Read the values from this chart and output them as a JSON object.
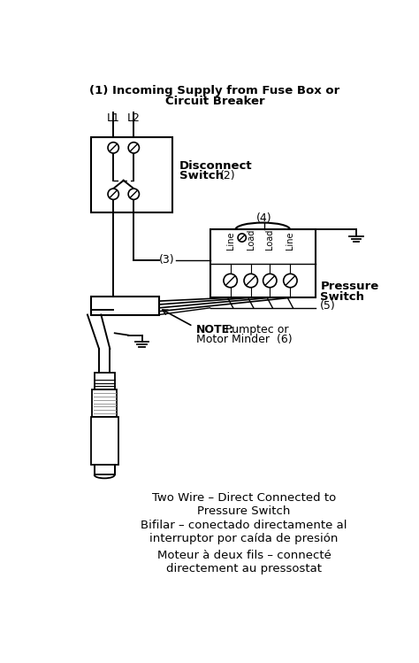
{
  "bg_color": "#ffffff",
  "line_color": "#000000",
  "title_line1": "(1) Incoming Supply from Fuse Box or",
  "title_line2": "Circuit Breaker",
  "label_L1": "L1",
  "label_L2": "L2",
  "label_disconnect": "Disconnect",
  "label_switch": "Switch",
  "label_2": "(2)",
  "label_3": "(3)",
  "label_4": "(4)",
  "label_pressure": "Pressure",
  "label_switch2": "Switch",
  "label_5": "(5)",
  "label_note": "NOTE:",
  "label_note2": " Pumptec or",
  "label_motor": "Motor Minder",
  "label_6": " (6)",
  "term_labels": [
    "Line",
    "Load",
    "Load",
    "Line"
  ],
  "caption1": "Two Wire – Direct Connected to\nPressure Switch",
  "caption2": "Bifilar – conectado directamente al\ninterruptor por caída de presión",
  "caption3": "Moteur à deux fils – connecté\ndirectement au pressostat",
  "figsize": [
    4.74,
    7.49
  ],
  "dpi": 100
}
